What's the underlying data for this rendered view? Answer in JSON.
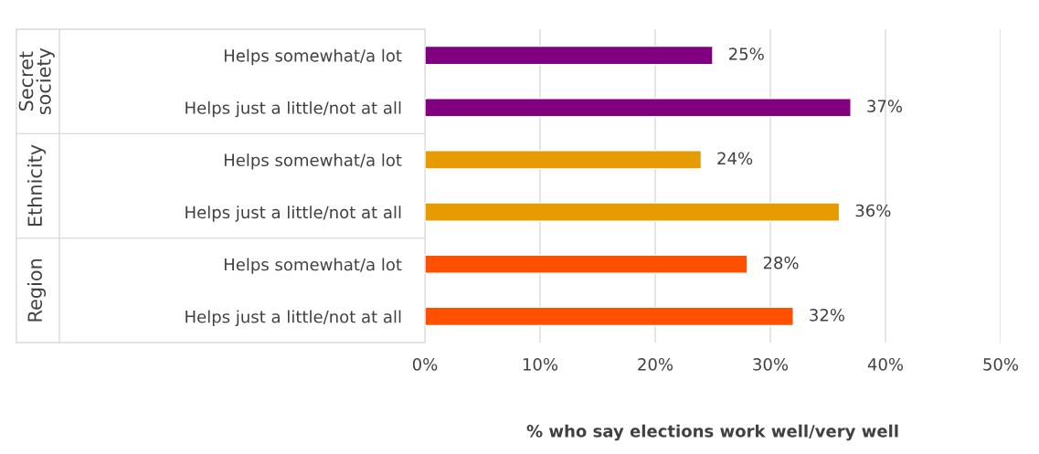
{
  "chart_data": {
    "type": "bar",
    "orientation": "horizontal",
    "xlabel": "% who say elections work well/very well",
    "categories": [
      "Helps somewhat/a lot",
      "Helps just a little/not at all",
      "Helps somewhat/a lot",
      "Helps just a little/not at all",
      "Helps somewhat/a lot",
      "Helps just a little/not at all"
    ],
    "values": [
      25,
      37,
      24,
      36,
      28,
      32
    ],
    "colors": [
      "#800080",
      "#800080",
      "#e69c00",
      "#e69c00",
      "#ff5000",
      "#ff5000"
    ],
    "value_labels": [
      "25%",
      "37%",
      "24%",
      "36%",
      "28%",
      "32%"
    ],
    "annotations": [
      "Secret\nsociety",
      "Ethnicity",
      "Region"
    ],
    "xlim": [
      0,
      50
    ],
    "xticks": [
      {
        "value": 0,
        "label": "0%"
      },
      {
        "value": 10,
        "label": "10%"
      },
      {
        "value": 20,
        "label": "20%"
      },
      {
        "value": 30,
        "label": "30%"
      },
      {
        "value": 40,
        "label": "40%"
      },
      {
        "value": 50,
        "label": "50%"
      }
    ],
    "grid": "x"
  }
}
